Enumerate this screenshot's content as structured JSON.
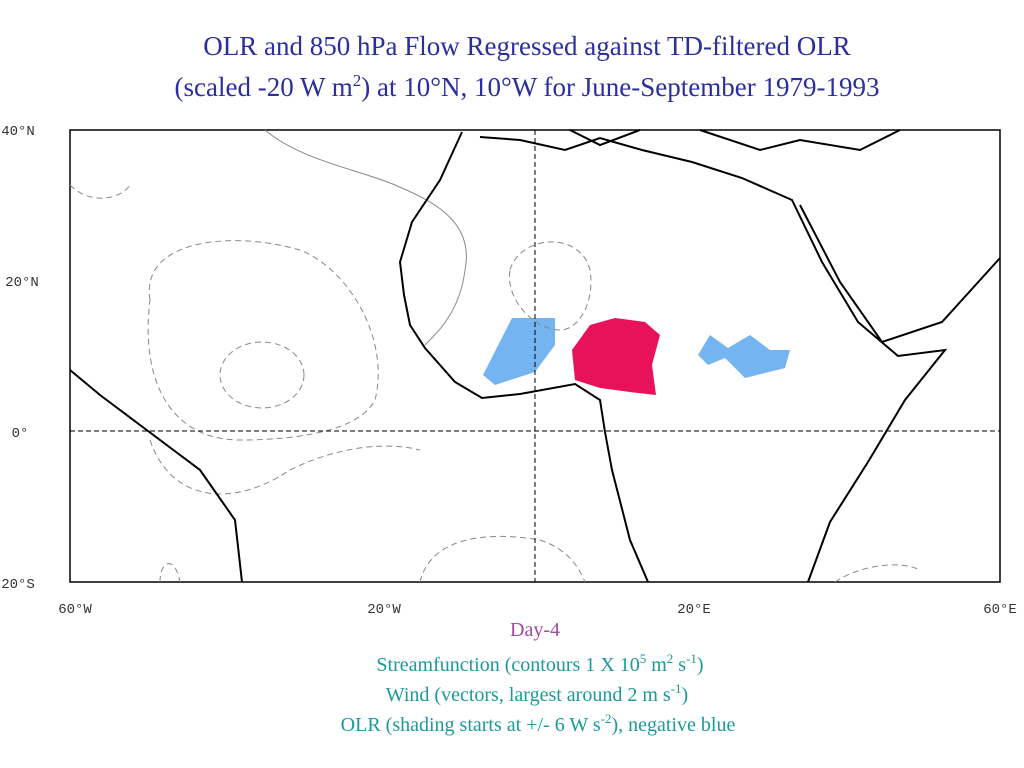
{
  "title": {
    "line1": "OLR and 850 hPa Flow Regressed against TD-filtered OLR",
    "line2": [
      "(scaled -20 W m",
      "2",
      ") at 10°N, 10°W for June-September 1979-1993"
    ]
  },
  "axes": {
    "lat_labels": [
      "40°N",
      "20°N",
      "0°",
      "20°S"
    ],
    "lon_labels": [
      "60°W",
      "20°W",
      "20°E",
      "60°E"
    ]
  },
  "caption": {
    "day": "Day-4",
    "line1": [
      "Streamfunction (contours 1 X 10",
      "5",
      " m",
      "2",
      " s",
      "-1",
      ")"
    ],
    "line2": [
      "Wind (vectors, largest around 2 m s",
      "-1",
      ")"
    ],
    "line3": [
      "OLR (shading starts at +/- 6 W s",
      "-2",
      "), negative blue"
    ]
  }
}
